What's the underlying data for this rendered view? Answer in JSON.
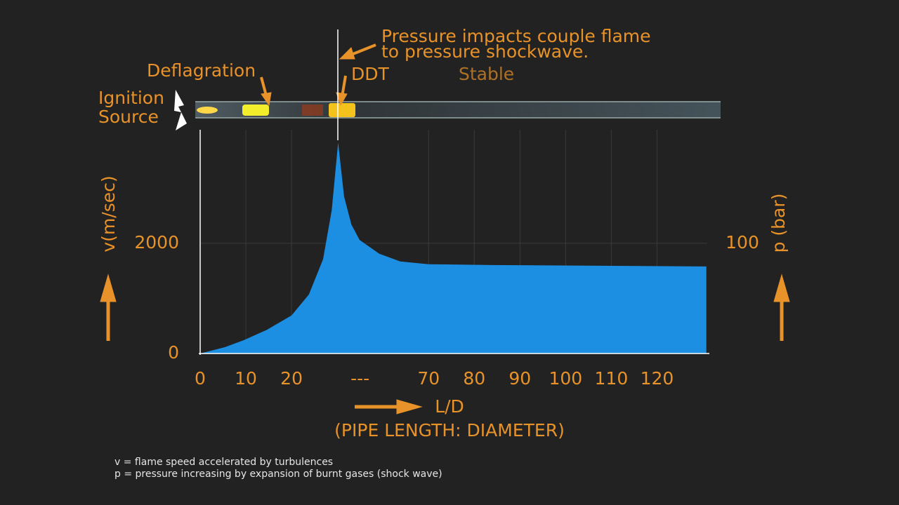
{
  "chart_data": {
    "type": "area",
    "annotations": [
      "Pressure impacts couple flame",
      "to pressure shockwave.",
      "Deflagration",
      "DDT",
      "Stable",
      "Ignition",
      "Source"
    ],
    "x_label": "L/D",
    "x_label_sub": "(PIPE LENGTH: DIAMETER)",
    "y_label": "v(m/sec)",
    "y2_label": "p (bar)",
    "notes": [
      "v = flame speed accelerated by turbulences",
      "p = pressure increasing by expansion of burnt gases (shock wave)"
    ],
    "x": [
      0,
      5.4,
      9.5,
      14.6,
      20,
      23.8,
      26.9,
      28.8,
      30.2,
      31.5,
      33.1,
      34.9,
      59.2,
      63.8,
      70,
      83.8,
      130.8
    ],
    "series": [
      {
        "name": "v",
        "color": "#1d8fe3",
        "values": [
          0,
          115,
          240,
          430,
          690,
          1070,
          1710,
          2600,
          3830,
          2850,
          2340,
          2060,
          1810,
          1670,
          1620,
          1605,
          1580
        ]
      }
    ],
    "xlim": [
      0,
      131
    ],
    "xbreak": [
      35,
      55
    ],
    "xticks": [
      0,
      10,
      20,
      {
        "value": 35,
        "label": "---"
      },
      70,
      80,
      90,
      100,
      110,
      120
    ],
    "ylim": [
      0,
      4060
    ],
    "yticks": [
      0,
      2000
    ],
    "y2lim": [
      0,
      203
    ],
    "y2ticks": [
      100
    ],
    "grid": true
  }
}
